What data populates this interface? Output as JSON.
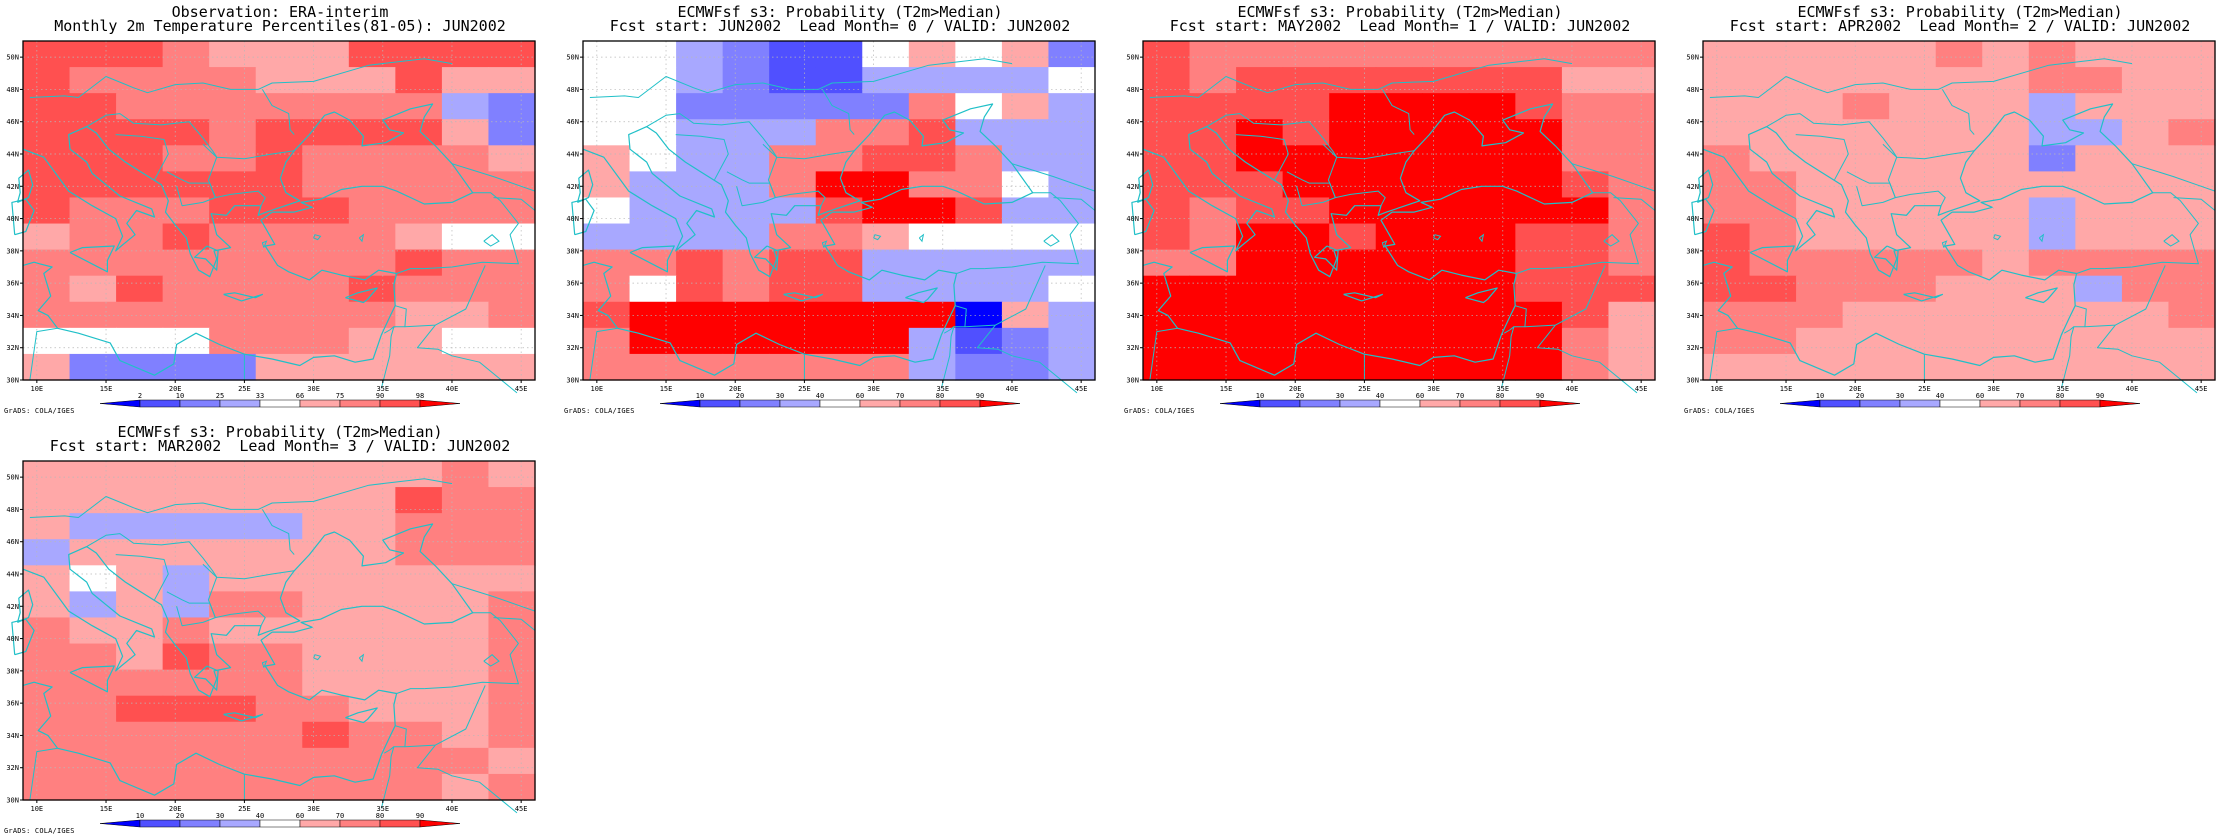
{
  "credit": "GrADS: COLA/IGES",
  "lat_labels": [
    "50N",
    "48N",
    "46N",
    "44N",
    "42N",
    "40N",
    "38N",
    "36N",
    "34N",
    "32N",
    "30N"
  ],
  "lon_labels": [
    "10E",
    "15E",
    "20E",
    "25E",
    "30E",
    "35E",
    "40E",
    "45E"
  ],
  "colors": {
    "coast": "#20c0c8",
    "grid": "#b8b8b8",
    "prob_scale": [
      "#0000ff",
      "#5050ff",
      "#8080ff",
      "#a8a8ff",
      "#ffffff",
      "#ffa8a8",
      "#ff8080",
      "#ff5050",
      "#ff0000"
    ],
    "obs_scale": [
      "#0000ff",
      "#5050ff",
      "#8080ff",
      "#a8a8ff",
      "#ffffff",
      "#ffa8a8",
      "#ff8080",
      "#ff5050",
      "#ff0000"
    ]
  },
  "panels": [
    {
      "id": "obs",
      "title1": "Observation: ERA-interim",
      "title2": "Monthly 2m Temperature Percentiles(81-05): JUN2002",
      "colorbar_labels": [
        "2",
        "10",
        "25",
        "33",
        "66",
        "75",
        "90",
        "98"
      ],
      "cells": [
        "77765557777",
        "76666555755",
        "77666666632",
        "77776777752",
        "77766766665",
        "77777766666",
        "76667776666",
        "56676666544",
        "66666666766",
        "65766667666",
        "66666666556",
        "44446665544",
        "52222555555"
      ]
    },
    {
      "id": "lead0",
      "title1": "ECMWFsf s3: Probability (T2m>Median)",
      "title2": "Fcst start: JUN2002  Lead Month= 0 / VALID: JUN2002",
      "colorbar_labels": [
        "10",
        "20",
        "30",
        "40",
        "60",
        "70",
        "80",
        "90"
      ],
      "cells": [
        "44321145452",
        "44321133334",
        "44222226453",
        "44333667333",
        "54336677633",
        "53336886643",
        "43333788733",
        "33336654444",
        "66767733333",
        "64767733334",
        "78888888053",
        "68888883123",
        "66666663223"
      ]
    },
    {
      "id": "lead1",
      "title1": "ECMWFsf s3: Probability (T2m>Median)",
      "title2": "Fcst start: MAY2002  Lead Month= 1 / VALID: JUN2002",
      "colorbar_labels": [
        "10",
        "20",
        "30",
        "40",
        "60",
        "70",
        "80",
        "90"
      ],
      "cells": [
        "76666666666",
        "76777777755",
        "77778888766",
        "77878888866",
        "77888888866",
        "77788888876",
        "76778888886",
        "76887888776",
        "66888888776",
        "88888888777",
        "88888888875",
        "88888888865",
        "88888888865"
      ]
    },
    {
      "id": "lead2",
      "title1": "ECMWFsf s3: Probability (T2m>Median)",
      "title2": "Fcst start: APR2002  Lead Month= 2 / VALID: JUN2002",
      "colorbar_labels": [
        "10",
        "20",
        "30",
        "40",
        "60",
        "70",
        "80",
        "90"
      ],
      "cells": [
        "55555656555",
        "55555556655",
        "55565553555",
        "55555553356",
        "65555552555",
        "66555555555",
        "66555553555",
        "76555553555",
        "76666656666",
        "77666555366",
        "66655555556",
        "66555555555",
        "55555555555"
      ]
    },
    {
      "id": "lead3",
      "title1": "ECMWFsf s3: Probability (T2m>Median)",
      "title2": "Fcst start: MAR2002  Lead Month= 3 / VALID: JUN2002",
      "colorbar_labels": [
        "10",
        "20",
        "30",
        "40",
        "60",
        "70",
        "80",
        "90"
      ],
      "cells": [
        "55555555565",
        "55555555766",
        "53333355666",
        "35555555666",
        "54535555555",
        "53536655556",
        "65565555556",
        "66576655556",
        "66666655556",
        "66777665556",
        "66666676656",
        "66666666665",
        "66666666656"
      ]
    }
  ]
}
